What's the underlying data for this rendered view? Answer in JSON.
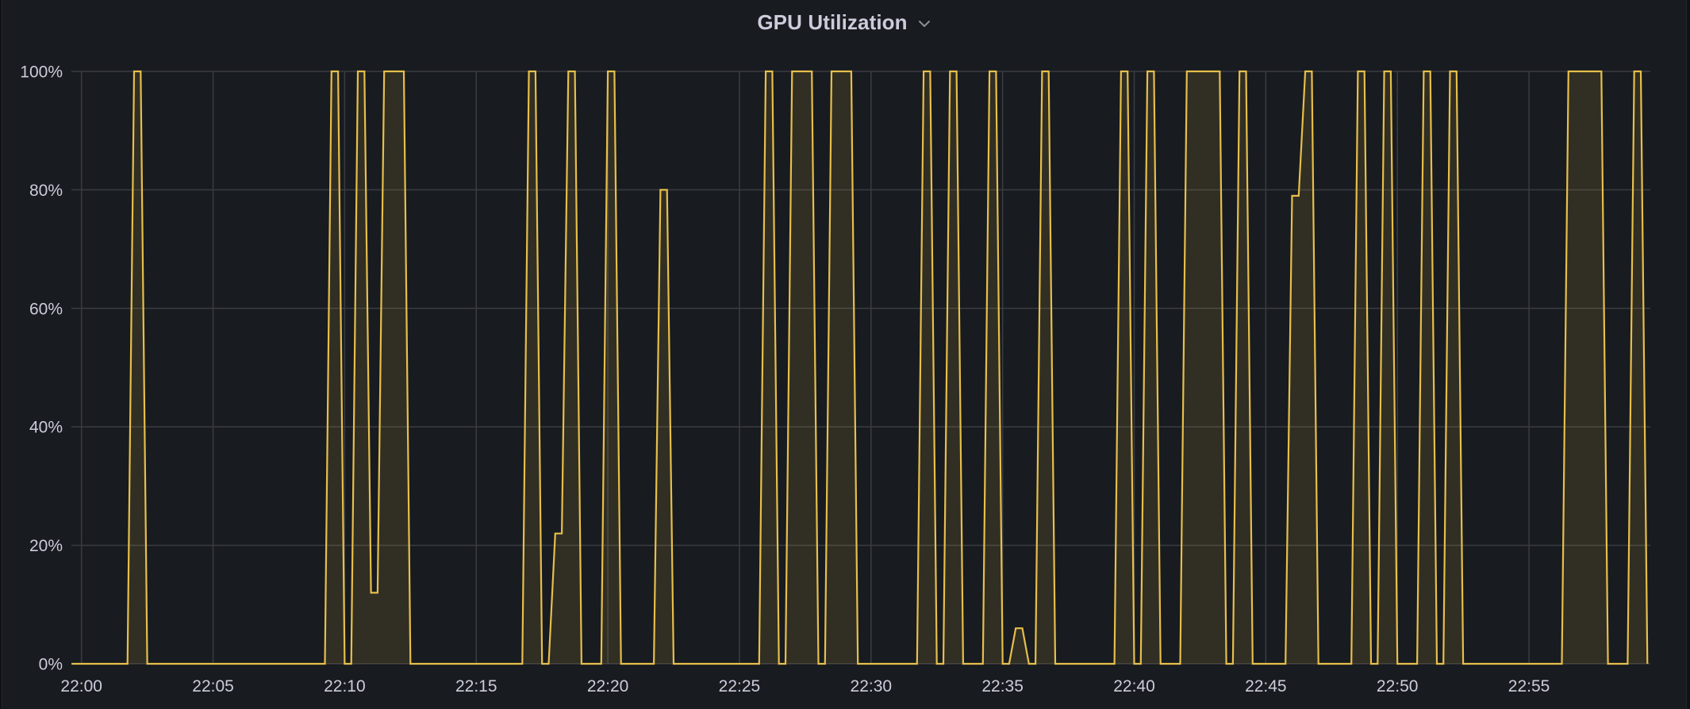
{
  "panel": {
    "title": "GPU Utilization",
    "menu_icon": "chevron-down-icon"
  },
  "colors": {
    "background": "#181b1f",
    "grid": "#3a3c42",
    "series_line": "#e6bf4b",
    "series_fill": "rgba(230,191,75,0.12)",
    "text": "#ccccdc"
  },
  "chart_data": {
    "type": "area",
    "title": "GPU Utilization",
    "xlabel": "",
    "ylabel": "",
    "ylim": [
      0,
      100
    ],
    "y_unit": "%",
    "y_ticks": [
      "0%",
      "20%",
      "40%",
      "60%",
      "80%",
      "100%"
    ],
    "x_tick_labels": [
      "22:00",
      "22:05",
      "22:10",
      "22:15",
      "22:20",
      "22:25",
      "22:30",
      "22:35",
      "22:40",
      "22:45",
      "22:50",
      "22:55"
    ],
    "x_unit": "minutes after 22:00",
    "xlim": [
      -0.38,
      59.61
    ],
    "grid": true,
    "legend": null,
    "series": [
      {
        "name": "GPU Utilization",
        "sample_interval_s": 15,
        "points": [
          [
            -0.38,
            0
          ],
          [
            1.75,
            0
          ],
          [
            2.0,
            100
          ],
          [
            2.25,
            100
          ],
          [
            2.5,
            0
          ],
          [
            9.25,
            0
          ],
          [
            9.5,
            100
          ],
          [
            9.75,
            100
          ],
          [
            10.0,
            0
          ],
          [
            10.25,
            0
          ],
          [
            10.5,
            100
          ],
          [
            10.75,
            100
          ],
          [
            11.0,
            12
          ],
          [
            11.25,
            12
          ],
          [
            11.5,
            100
          ],
          [
            11.75,
            100
          ],
          [
            12.0,
            100
          ],
          [
            12.25,
            100
          ],
          [
            12.5,
            0
          ],
          [
            16.75,
            0
          ],
          [
            17.0,
            100
          ],
          [
            17.25,
            100
          ],
          [
            17.5,
            0
          ],
          [
            17.75,
            0
          ],
          [
            18.0,
            22
          ],
          [
            18.25,
            22
          ],
          [
            18.5,
            100
          ],
          [
            18.75,
            100
          ],
          [
            19.0,
            0
          ],
          [
            19.75,
            0
          ],
          [
            20.0,
            100
          ],
          [
            20.25,
            100
          ],
          [
            20.5,
            0
          ],
          [
            21.75,
            0
          ],
          [
            22.0,
            80
          ],
          [
            22.25,
            80
          ],
          [
            22.5,
            0
          ],
          [
            25.75,
            0
          ],
          [
            26.0,
            100
          ],
          [
            26.25,
            100
          ],
          [
            26.5,
            0
          ],
          [
            26.75,
            0
          ],
          [
            27.0,
            100
          ],
          [
            27.25,
            100
          ],
          [
            27.5,
            100
          ],
          [
            27.75,
            100
          ],
          [
            28.0,
            0
          ],
          [
            28.25,
            0
          ],
          [
            28.5,
            100
          ],
          [
            28.75,
            100
          ],
          [
            29.0,
            100
          ],
          [
            29.25,
            100
          ],
          [
            29.5,
            0
          ],
          [
            31.75,
            0
          ],
          [
            32.0,
            100
          ],
          [
            32.25,
            100
          ],
          [
            32.5,
            0
          ],
          [
            32.75,
            0
          ],
          [
            33.0,
            100
          ],
          [
            33.25,
            100
          ],
          [
            33.5,
            0
          ],
          [
            34.25,
            0
          ],
          [
            34.5,
            100
          ],
          [
            34.75,
            100
          ],
          [
            35.0,
            0
          ],
          [
            35.25,
            0
          ],
          [
            35.5,
            6
          ],
          [
            35.75,
            6
          ],
          [
            36.0,
            0
          ],
          [
            36.25,
            0
          ],
          [
            36.5,
            100
          ],
          [
            36.75,
            100
          ],
          [
            37.0,
            0
          ],
          [
            39.25,
            0
          ],
          [
            39.5,
            100
          ],
          [
            39.75,
            100
          ],
          [
            40.0,
            0
          ],
          [
            40.25,
            0
          ],
          [
            40.5,
            100
          ],
          [
            40.75,
            100
          ],
          [
            41.0,
            0
          ],
          [
            41.75,
            0
          ],
          [
            42.0,
            100
          ],
          [
            42.25,
            100
          ],
          [
            42.5,
            100
          ],
          [
            42.75,
            100
          ],
          [
            43.0,
            100
          ],
          [
            43.25,
            100
          ],
          [
            43.5,
            0
          ],
          [
            43.75,
            0
          ],
          [
            44.0,
            100
          ],
          [
            44.25,
            100
          ],
          [
            44.5,
            0
          ],
          [
            45.75,
            0
          ],
          [
            46.0,
            79
          ],
          [
            46.25,
            79
          ],
          [
            46.5,
            100
          ],
          [
            46.75,
            100
          ],
          [
            47.0,
            0
          ],
          [
            48.25,
            0
          ],
          [
            48.5,
            100
          ],
          [
            48.75,
            100
          ],
          [
            49.0,
            0
          ],
          [
            49.25,
            0
          ],
          [
            49.5,
            100
          ],
          [
            49.75,
            100
          ],
          [
            50.0,
            0
          ],
          [
            50.75,
            0
          ],
          [
            51.0,
            100
          ],
          [
            51.25,
            100
          ],
          [
            51.5,
            0
          ],
          [
            51.75,
            0
          ],
          [
            52.0,
            100
          ],
          [
            52.25,
            100
          ],
          [
            52.5,
            0
          ],
          [
            56.25,
            0
          ],
          [
            56.5,
            100
          ],
          [
            56.75,
            100
          ],
          [
            57.0,
            100
          ],
          [
            57.25,
            100
          ],
          [
            57.5,
            100
          ],
          [
            57.75,
            100
          ],
          [
            58.0,
            0
          ],
          [
            58.75,
            0
          ],
          [
            59.0,
            100
          ],
          [
            59.25,
            100
          ],
          [
            59.5,
            0
          ]
        ]
      }
    ]
  }
}
